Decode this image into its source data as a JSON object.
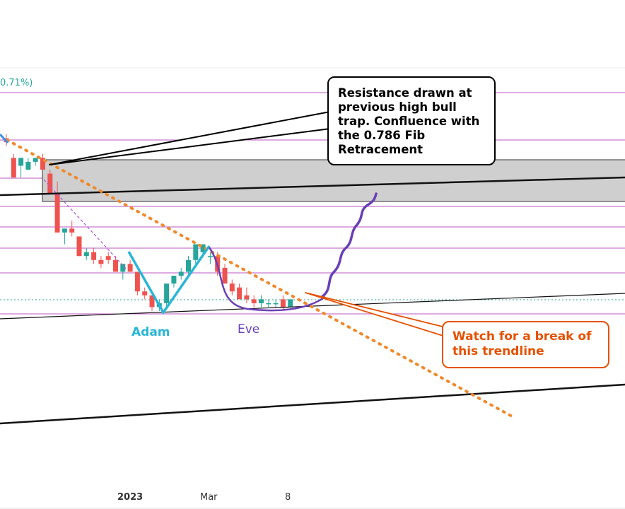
{
  "percent_label": "0.71%)",
  "colors": {
    "bull_candle": "#26a69a",
    "bear_candle": "#ef5350",
    "fib_lines": "#9c27b0",
    "resistance_zone": "#cfcfcf",
    "down_trendline": "#f0892a",
    "adam_pattern": "#29b6d6",
    "eve_pattern": "#6a3fb5",
    "projection_path": "#6a3fb5",
    "watch_callout": "#e65100"
  },
  "annotations": {
    "resistance_note": "Resistance drawn at previous high bull trap.  Confluence with the 0.786 Fib Retracement",
    "trendline_note": "Watch for a break of this trendline",
    "adam_label": "Adam",
    "eve_label": "Eve"
  },
  "chart_data": {
    "type": "candlestick",
    "title": "",
    "xlabel": "",
    "ylabel": "",
    "x_ticks": [
      "2023",
      "Mar",
      "8"
    ],
    "grid": false,
    "pattern": "Adam and Eve double bottom",
    "candles": [
      {
        "o": 0.71,
        "h": 0.72,
        "l": 0.69,
        "c": 0.7
      },
      {
        "o": 0.66,
        "h": 0.67,
        "l": 0.61,
        "c": 0.61
      },
      {
        "o": 0.64,
        "h": 0.66,
        "l": 0.61,
        "c": 0.66
      },
      {
        "o": 0.63,
        "h": 0.66,
        "l": 0.63,
        "c": 0.65
      },
      {
        "o": 0.65,
        "h": 0.66,
        "l": 0.64,
        "c": 0.66
      },
      {
        "o": 0.66,
        "h": 0.67,
        "l": 0.63,
        "c": 0.63
      },
      {
        "o": 0.62,
        "h": 0.63,
        "l": 0.57,
        "c": 0.57
      },
      {
        "o": 0.57,
        "h": 0.6,
        "l": 0.47,
        "c": 0.47
      },
      {
        "o": 0.47,
        "h": 0.48,
        "l": 0.44,
        "c": 0.48
      },
      {
        "o": 0.48,
        "h": 0.5,
        "l": 0.46,
        "c": 0.47
      },
      {
        "o": 0.46,
        "h": 0.46,
        "l": 0.41,
        "c": 0.41
      },
      {
        "o": 0.41,
        "h": 0.43,
        "l": 0.4,
        "c": 0.42
      },
      {
        "o": 0.42,
        "h": 0.43,
        "l": 0.39,
        "c": 0.4
      },
      {
        "o": 0.4,
        "h": 0.41,
        "l": 0.38,
        "c": 0.39
      },
      {
        "o": 0.41,
        "h": 0.42,
        "l": 0.39,
        "c": 0.4
      },
      {
        "o": 0.4,
        "h": 0.41,
        "l": 0.37,
        "c": 0.37
      },
      {
        "o": 0.37,
        "h": 0.39,
        "l": 0.35,
        "c": 0.39
      },
      {
        "o": 0.39,
        "h": 0.4,
        "l": 0.37,
        "c": 0.37
      },
      {
        "o": 0.37,
        "h": 0.37,
        "l": 0.31,
        "c": 0.32
      },
      {
        "o": 0.32,
        "h": 0.33,
        "l": 0.3,
        "c": 0.31
      },
      {
        "o": 0.31,
        "h": 0.31,
        "l": 0.27,
        "c": 0.28
      },
      {
        "o": 0.28,
        "h": 0.3,
        "l": 0.27,
        "c": 0.29
      },
      {
        "o": 0.29,
        "h": 0.34,
        "l": 0.28,
        "c": 0.34
      },
      {
        "o": 0.34,
        "h": 0.36,
        "l": 0.33,
        "c": 0.36
      },
      {
        "o": 0.36,
        "h": 0.38,
        "l": 0.35,
        "c": 0.37
      },
      {
        "o": 0.37,
        "h": 0.41,
        "l": 0.36,
        "c": 0.4
      },
      {
        "o": 0.4,
        "h": 0.44,
        "l": 0.39,
        "c": 0.44
      },
      {
        "o": 0.42,
        "h": 0.44,
        "l": 0.41,
        "c": 0.44
      },
      {
        "o": 0.41,
        "h": 0.42,
        "l": 0.39,
        "c": 0.41
      },
      {
        "o": 0.41,
        "h": 0.42,
        "l": 0.36,
        "c": 0.37
      },
      {
        "o": 0.38,
        "h": 0.39,
        "l": 0.34,
        "c": 0.34
      },
      {
        "o": 0.34,
        "h": 0.35,
        "l": 0.31,
        "c": 0.32
      },
      {
        "o": 0.33,
        "h": 0.34,
        "l": 0.3,
        "c": 0.3
      },
      {
        "o": 0.31,
        "h": 0.33,
        "l": 0.29,
        "c": 0.3
      },
      {
        "o": 0.3,
        "h": 0.31,
        "l": 0.28,
        "c": 0.29
      },
      {
        "o": 0.29,
        "h": 0.31,
        "l": 0.28,
        "c": 0.3
      },
      {
        "o": 0.29,
        "h": 0.3,
        "l": 0.28,
        "c": 0.29
      },
      {
        "o": 0.29,
        "h": 0.3,
        "l": 0.28,
        "c": 0.29
      },
      {
        "o": 0.3,
        "h": 0.31,
        "l": 0.27,
        "c": 0.28
      },
      {
        "o": 0.28,
        "h": 0.3,
        "l": 0.28,
        "c": 0.3
      }
    ]
  }
}
